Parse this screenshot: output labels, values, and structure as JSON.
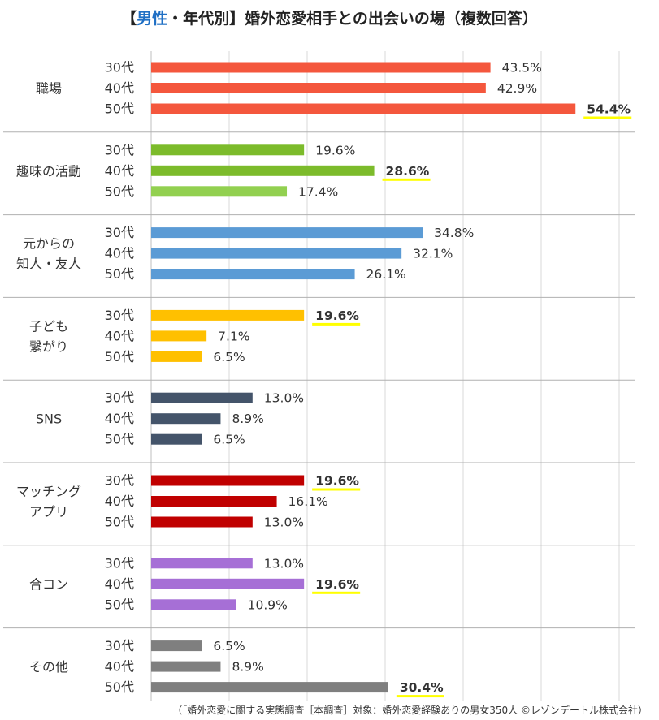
{
  "title_prefix": "【",
  "title_accent": "男性",
  "title_rest": "・年代別】婚外恋愛相手との出会いの場（複数回答）",
  "footnote": "（「婚外恋愛に関する実態調査［本調査］対象：婚外恋愛経験ありの男女350人 ©レゾンデートル株式会社）",
  "colors": {
    "grid": "#d9d9d9",
    "separator": "#b0b0b0",
    "highlight": "#ffff00",
    "shokuba": "#f4573d",
    "shumi_dark": "#7cbb2b",
    "shumi_light": "#92d050",
    "moto": "#5b9bd5",
    "kodomo": "#ffc000",
    "sns": "#44546a",
    "app": "#c00000",
    "gokon": "#a66fd6",
    "sonota": "#7f7f7f"
  },
  "chart_data": {
    "type": "bar",
    "orientation": "horizontal",
    "xlim": [
      0,
      60
    ],
    "grid": true,
    "unit": "%",
    "groups": [
      {
        "label": [
          "職場"
        ],
        "color": "shokuba",
        "bars": [
          {
            "age": "30代",
            "value": 43.5,
            "label": "43.5%",
            "highlight": false
          },
          {
            "age": "40代",
            "value": 42.9,
            "label": "42.9%",
            "highlight": false
          },
          {
            "age": "50代",
            "value": 54.4,
            "label": "54.4%",
            "highlight": true
          }
        ]
      },
      {
        "label": [
          "趣味の活動"
        ],
        "color": "shumi_dark",
        "bars": [
          {
            "age": "30代",
            "value": 19.6,
            "label": "19.6%",
            "highlight": false
          },
          {
            "age": "40代",
            "value": 28.6,
            "label": "28.6%",
            "highlight": true
          },
          {
            "age": "50代",
            "value": 17.4,
            "label": "17.4%",
            "highlight": false,
            "color": "shumi_light"
          }
        ]
      },
      {
        "label": [
          "元からの",
          "知人・友人"
        ],
        "color": "moto",
        "bars": [
          {
            "age": "30代",
            "value": 34.8,
            "label": "34.8%",
            "highlight": false
          },
          {
            "age": "40代",
            "value": 32.1,
            "label": "32.1%",
            "highlight": false
          },
          {
            "age": "50代",
            "value": 26.1,
            "label": "26.1%",
            "highlight": false
          }
        ]
      },
      {
        "label": [
          "子ども",
          "繋がり"
        ],
        "color": "kodomo",
        "bars": [
          {
            "age": "30代",
            "value": 19.6,
            "label": "19.6%",
            "highlight": true
          },
          {
            "age": "40代",
            "value": 7.1,
            "label": "7.1%",
            "highlight": false
          },
          {
            "age": "50代",
            "value": 6.5,
            "label": "6.5%",
            "highlight": false
          }
        ]
      },
      {
        "label": [
          "SNS"
        ],
        "color": "sns",
        "bars": [
          {
            "age": "30代",
            "value": 13.0,
            "label": "13.0%",
            "highlight": false
          },
          {
            "age": "40代",
            "value": 8.9,
            "label": "8.9%",
            "highlight": false
          },
          {
            "age": "50代",
            "value": 6.5,
            "label": "6.5%",
            "highlight": false
          }
        ]
      },
      {
        "label": [
          "マッチング",
          "アプリ"
        ],
        "color": "app",
        "bars": [
          {
            "age": "30代",
            "value": 19.6,
            "label": "19.6%",
            "highlight": true
          },
          {
            "age": "40代",
            "value": 16.1,
            "label": "16.1%",
            "highlight": false
          },
          {
            "age": "50代",
            "value": 13.0,
            "label": "13.0%",
            "highlight": false
          }
        ]
      },
      {
        "label": [
          "合コン"
        ],
        "color": "gokon",
        "bars": [
          {
            "age": "30代",
            "value": 13.0,
            "label": "13.0%",
            "highlight": false
          },
          {
            "age": "40代",
            "value": 19.6,
            "label": "19.6%",
            "highlight": true
          },
          {
            "age": "50代",
            "value": 10.9,
            "label": "10.9%",
            "highlight": false
          }
        ]
      },
      {
        "label": [
          "その他"
        ],
        "color": "sonota",
        "bars": [
          {
            "age": "30代",
            "value": 6.5,
            "label": "6.5%",
            "highlight": false
          },
          {
            "age": "40代",
            "value": 8.9,
            "label": "8.9%",
            "highlight": false
          },
          {
            "age": "50代",
            "value": 30.4,
            "label": "30.4%",
            "highlight": true
          }
        ]
      }
    ]
  }
}
